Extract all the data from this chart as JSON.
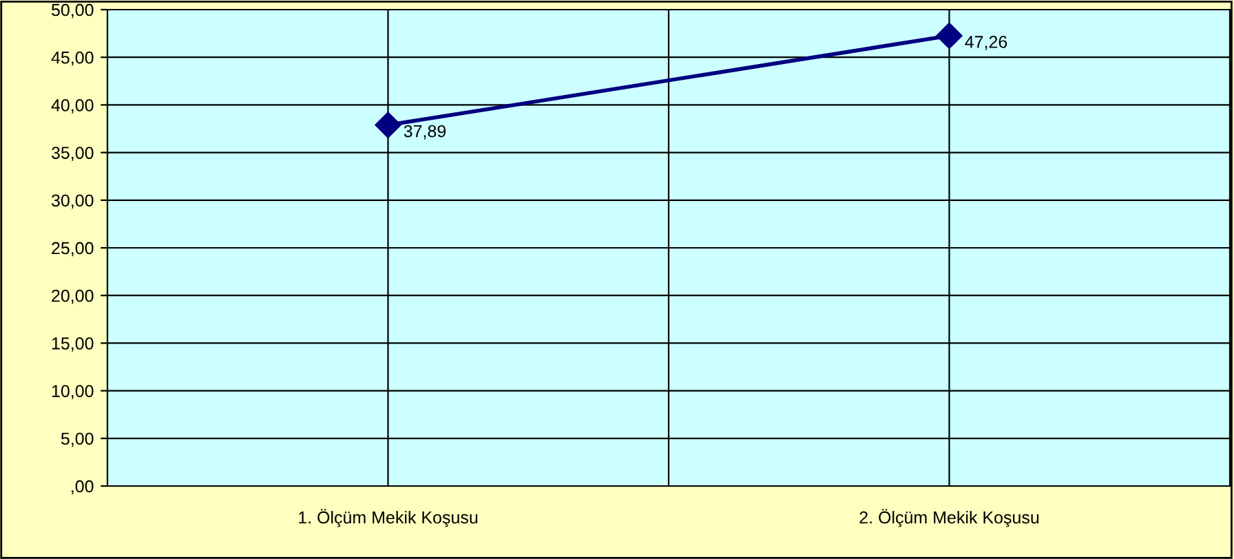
{
  "chart_data": {
    "type": "line",
    "categories": [
      "1. Ölçüm Mekik Koşusu",
      "2. Ölçüm Mekik Koşusu"
    ],
    "series": [
      {
        "color": "#000080",
        "values": [
          37.89,
          47.26
        ],
        "value_labels": [
          "37,89",
          "47,26"
        ]
      }
    ],
    "ylim": [
      0,
      50
    ],
    "yticks": [
      {
        "value": 0,
        "label": ",00"
      },
      {
        "value": 5,
        "label": "5,00"
      },
      {
        "value": 10,
        "label": "10,00"
      },
      {
        "value": 15,
        "label": "15,00"
      },
      {
        "value": 20,
        "label": "20,00"
      },
      {
        "value": 25,
        "label": "25,00"
      },
      {
        "value": 30,
        "label": "30,00"
      },
      {
        "value": 35,
        "label": "35,00"
      },
      {
        "value": 40,
        "label": "40,00"
      },
      {
        "value": 45,
        "label": "45,00"
      },
      {
        "value": 50,
        "label": "50,00"
      }
    ],
    "grid": true,
    "marker": "diamond",
    "line_style": "solid",
    "legend": false
  }
}
